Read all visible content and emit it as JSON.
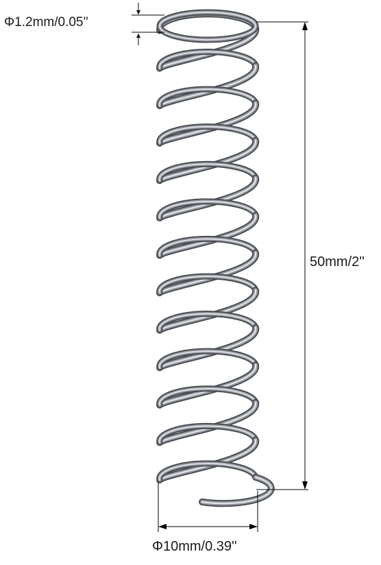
{
  "dimensions": {
    "wire_diameter_label": "Φ1.2mm/0.05''",
    "free_length_label": "50mm/2''",
    "outer_diameter_label": "Φ10mm/0.39''"
  },
  "spring": {
    "coil_count": 13,
    "colors": {
      "wire_dark": "#4a4d52",
      "wire_mid": "#9a9ea4",
      "wire_light": "#e6e8ea",
      "dimension_line": "#000000"
    }
  }
}
